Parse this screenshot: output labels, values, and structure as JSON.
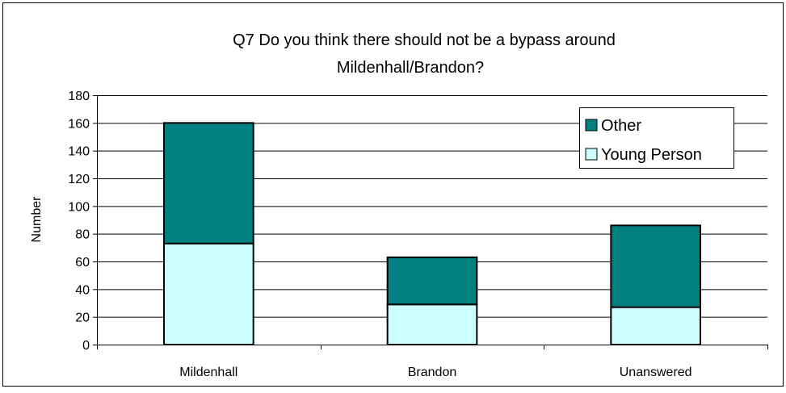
{
  "chart_data": {
    "type": "bar",
    "stacked": true,
    "title_lines": [
      "Q7 Do you think there should not be a bypass around",
      "Mildenhall/Brandon?"
    ],
    "xlabel": "",
    "ylabel": "Number",
    "ylim": [
      0,
      180
    ],
    "ytick_step": 20,
    "yticks": [
      "0",
      "20",
      "40",
      "60",
      "80",
      "100",
      "120",
      "140",
      "160",
      "180"
    ],
    "grid": true,
    "legend_position": "top-right",
    "categories": [
      "Mildenhall",
      "Brandon",
      "Unanswered"
    ],
    "series": [
      {
        "name": "Young Person",
        "color": "#ccffff",
        "values": [
          73,
          29,
          27
        ]
      },
      {
        "name": "Other",
        "color": "#008080",
        "values": [
          87,
          34,
          59
        ]
      }
    ],
    "legend_order": [
      1,
      0
    ]
  }
}
